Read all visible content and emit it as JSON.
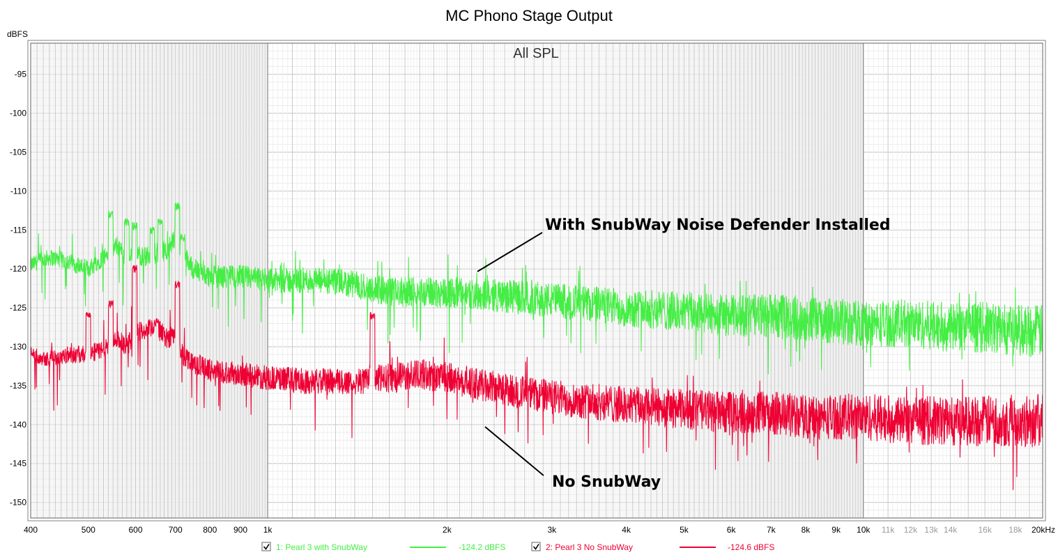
{
  "chart_data": {
    "type": "line",
    "title": "MC Phono Stage Output",
    "subtitle": "All SPL",
    "ylabel": "dBFS",
    "xlabel": "",
    "x_scale": "log",
    "xlim": [
      400,
      20000
    ],
    "ylim": [
      -152,
      -91
    ],
    "grid": true,
    "x_ticks": [
      {
        "value": 400,
        "label": "400"
      },
      {
        "value": 500,
        "label": "500"
      },
      {
        "value": 600,
        "label": "600"
      },
      {
        "value": 700,
        "label": "700"
      },
      {
        "value": 800,
        "label": "800"
      },
      {
        "value": 900,
        "label": "900"
      },
      {
        "value": 1000,
        "label": "1k"
      },
      {
        "value": 2000,
        "label": "2k"
      },
      {
        "value": 3000,
        "label": "3k"
      },
      {
        "value": 4000,
        "label": "4k"
      },
      {
        "value": 5000,
        "label": "5k"
      },
      {
        "value": 6000,
        "label": "6k"
      },
      {
        "value": 7000,
        "label": "7k"
      },
      {
        "value": 8000,
        "label": "8k"
      },
      {
        "value": 9000,
        "label": "9k"
      },
      {
        "value": 10000,
        "label": "10k"
      },
      {
        "value": 11000,
        "label": "11k",
        "gray": true
      },
      {
        "value": 12000,
        "label": "12k",
        "gray": true
      },
      {
        "value": 13000,
        "label": "13k",
        "gray": true
      },
      {
        "value": 14000,
        "label": "14k",
        "gray": true
      },
      {
        "value": 16000,
        "label": "16k",
        "gray": true
      },
      {
        "value": 18000,
        "label": "18k",
        "gray": true
      },
      {
        "value": 20000,
        "label": "20kHz"
      }
    ],
    "y_ticks": [
      -95,
      -100,
      -105,
      -110,
      -115,
      -120,
      -125,
      -130,
      -135,
      -140,
      -145,
      -150
    ],
    "series": [
      {
        "name": "1: Pearl 3 with SnubWay",
        "color": "#44ee44",
        "legend_value": "-124.2 dBFS",
        "x": [
          400,
          430,
          460,
          500,
          540,
          560,
          580,
          600,
          620,
          650,
          680,
          700,
          720,
          750,
          800,
          900,
          1000,
          1200,
          1400,
          1600,
          1800,
          2000,
          2500,
          3000,
          4000,
          5000,
          6000,
          7000,
          8000,
          10000,
          12000,
          14000,
          16000,
          18000,
          20000
        ],
        "y": [
          -119.5,
          -118.5,
          -119,
          -120,
          -118,
          -117,
          -119,
          -118,
          -118.5,
          -118,
          -117.5,
          -116,
          -118,
          -120,
          -121,
          -121,
          -121.5,
          -121.5,
          -122,
          -123,
          -123,
          -123,
          -123.5,
          -124,
          -125,
          -125.5,
          -126,
          -126,
          -126.5,
          -127,
          -127,
          -127.5,
          -127.5,
          -127.8,
          -128
        ],
        "spikes": [
          [
            545,
            -113
          ],
          [
            580,
            -114
          ],
          [
            598,
            -114.5
          ],
          [
            640,
            -115
          ],
          [
            660,
            -114
          ],
          [
            705,
            -112
          ],
          [
            720,
            -116
          ]
        ]
      },
      {
        "name": "2: Pearl 3 No SnubWay",
        "color": "#ee0033",
        "legend_value": "-124.6 dBFS",
        "x": [
          400,
          430,
          460,
          500,
          540,
          560,
          580,
          600,
          620,
          650,
          680,
          700,
          720,
          750,
          800,
          900,
          1000,
          1200,
          1400,
          1600,
          1800,
          2000,
          2500,
          3000,
          4000,
          5000,
          6000,
          7000,
          8000,
          10000,
          12000,
          14000,
          16000,
          18000,
          20000
        ],
        "y": [
          -131,
          -131.5,
          -131,
          -131,
          -130,
          -129,
          -130,
          -128,
          -128,
          -127.5,
          -129,
          -128,
          -131,
          -132,
          -133,
          -133.5,
          -134,
          -134.5,
          -134.5,
          -134,
          -133.5,
          -134,
          -135.5,
          -136.5,
          -137.5,
          -138,
          -138.5,
          -138.5,
          -139,
          -139,
          -139.5,
          -139.5,
          -139.5,
          -139.5,
          -139.5
        ],
        "spikes": [
          [
            500,
            -126
          ],
          [
            545,
            -124.5
          ],
          [
            598,
            -120
          ],
          [
            650,
            -127
          ],
          [
            705,
            -122
          ],
          [
            1500,
            -126
          ]
        ]
      }
    ],
    "annotations": [
      {
        "text": "With SnubWay Noise Defender Installed",
        "target_x": 2300,
        "target_y": -121
      },
      {
        "text": "No SnubWay",
        "target_x": 2400,
        "target_y": -139
      }
    ],
    "legend": {
      "placement": "bottom"
    }
  }
}
